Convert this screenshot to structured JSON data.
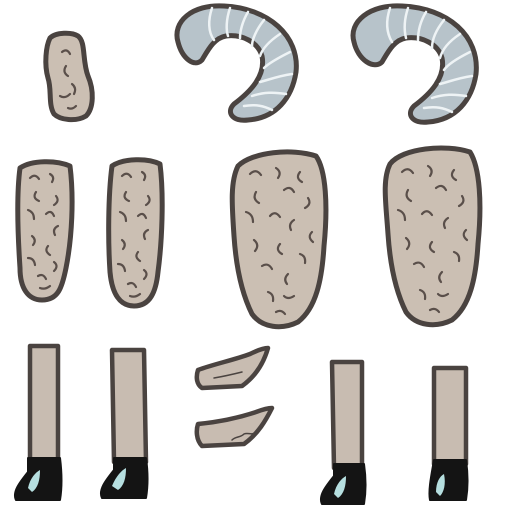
{
  "sheet": {
    "background": "#ffffff",
    "palette": {
      "outline": "#4a4340",
      "wool": "#cbbfb3",
      "wool_dark": "#b9ada2",
      "curl": "#5a4f4a",
      "horn": "#b7c3ca",
      "horn_stripe": "#eef3f5",
      "leg": "#c8bcb1",
      "hoof": "#141414",
      "hoof_shine": "#b6dfe0"
    },
    "sprites": [
      {
        "name": "small-wool-tuft-sprite",
        "kind": "wool"
      },
      {
        "name": "horn-left-sprite",
        "kind": "horn"
      },
      {
        "name": "horn-right-sprite",
        "kind": "horn"
      },
      {
        "name": "upper-leg-wool-left-sprite",
        "kind": "wool"
      },
      {
        "name": "upper-leg-wool-right-sprite",
        "kind": "wool"
      },
      {
        "name": "body-wool-left-sprite",
        "kind": "wool"
      },
      {
        "name": "body-wool-right-sprite",
        "kind": "wool"
      },
      {
        "name": "lower-leg-1-sprite",
        "kind": "leg"
      },
      {
        "name": "lower-leg-2-sprite",
        "kind": "leg"
      },
      {
        "name": "ear-top-sprite",
        "kind": "ear"
      },
      {
        "name": "ear-bottom-sprite",
        "kind": "ear"
      },
      {
        "name": "lower-leg-3-sprite",
        "kind": "leg"
      },
      {
        "name": "lower-leg-4-sprite",
        "kind": "leg"
      }
    ]
  }
}
